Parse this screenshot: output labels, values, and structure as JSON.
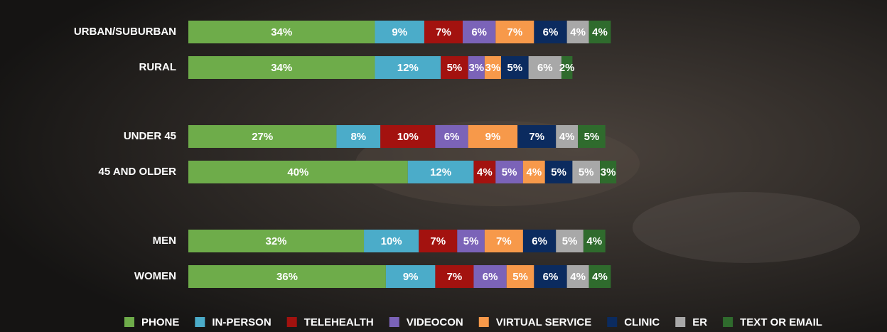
{
  "chart_data": {
    "type": "stacked-bar",
    "categories": [
      "URBAN/SUBURBAN",
      "RURAL",
      "UNDER 45",
      "45 AND OLDER",
      "MEN",
      "WOMEN"
    ],
    "series": [
      {
        "name": "PHONE",
        "color": "#6eac4a",
        "values": [
          34,
          34,
          27,
          40,
          32,
          36
        ],
        "value_labels": [
          "34%",
          "34%",
          "27%",
          "40%",
          "32%",
          "36%"
        ]
      },
      {
        "name": "IN-PERSON",
        "color": "#4bacc9",
        "values": [
          9,
          12,
          8,
          12,
          10,
          9
        ],
        "value_labels": [
          "9%",
          "12%",
          "8%",
          "12%",
          "10%",
          "9%"
        ]
      },
      {
        "name": "TELEHEALTH",
        "color": "#a3120f",
        "values": [
          7,
          5,
          10,
          4,
          7,
          7
        ],
        "value_labels": [
          "7%",
          "5%",
          "10%",
          "4%",
          "7%",
          "7%"
        ]
      },
      {
        "name": "VIDEOCON",
        "color": "#7b63b8",
        "values": [
          6,
          3,
          6,
          5,
          5,
          6
        ],
        "value_labels": [
          "6%",
          "3%",
          "6%",
          "5%",
          "5%",
          "6%"
        ]
      },
      {
        "name": "VIRTUAL SERVICE",
        "color": "#f7994a",
        "values": [
          7,
          3,
          9,
          4,
          7,
          5
        ],
        "value_labels": [
          "7%",
          "3%",
          "9%",
          "4%",
          "7%",
          "5%"
        ]
      },
      {
        "name": "CLINIC",
        "color": "#0b2b5f",
        "values": [
          6,
          5,
          7,
          5,
          6,
          6
        ],
        "value_labels": [
          "6%",
          "5%",
          "7%",
          "5%",
          "6%",
          "6%"
        ]
      },
      {
        "name": "ER",
        "color": "#a8a8a8",
        "values": [
          4,
          6,
          4,
          5,
          5,
          4
        ],
        "value_labels": [
          "4%",
          "6%",
          "4%",
          "5%",
          "5%",
          "4%"
        ]
      },
      {
        "name": "TEXT OR EMAIL",
        "color": "#2f6b2d",
        "values": [
          4,
          2,
          5,
          3,
          4,
          4
        ],
        "value_labels": [
          "4%",
          "2%",
          "5%",
          "3%",
          "4%",
          "4%"
        ]
      }
    ]
  }
}
